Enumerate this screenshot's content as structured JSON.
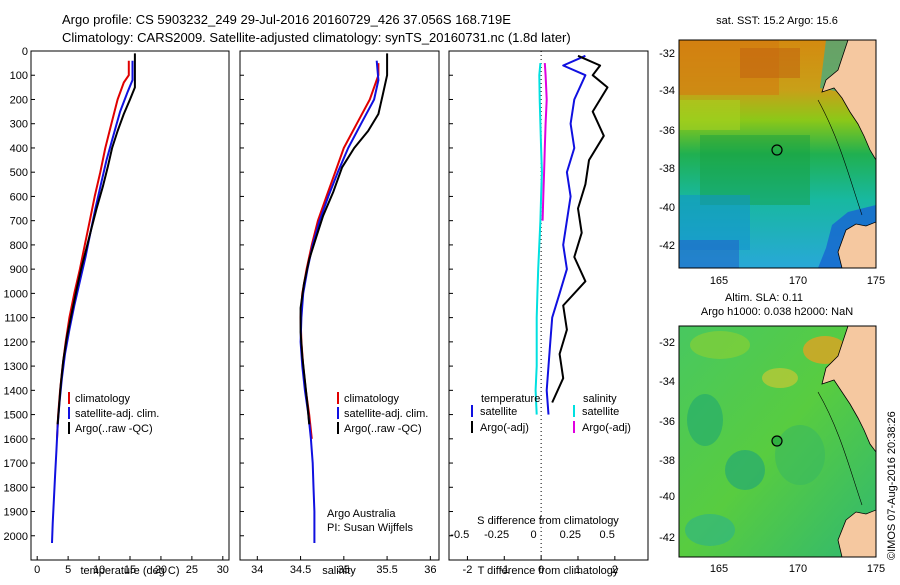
{
  "header": {
    "title_line1": "Argo profile: CS 5903232_249 29-Jul-2016 20160729_426 37.056S 168.719E",
    "title_line2": "Climatology: CARS2009. Satellite-adjusted climatology: synTS_20160731.nc (1.8d later)"
  },
  "colors": {
    "climatology": "#e00000",
    "satellite": "#1010e0",
    "argo": "#000000",
    "sal_satellite": "#00e0e0",
    "sal_argo": "#e000e0"
  },
  "chart_data": [
    {
      "type": "line",
      "name": "temperature-panel",
      "xlabel": "temperature (deg C)",
      "ylabel": "",
      "xlim": [
        -1,
        31
      ],
      "ylim": [
        2100,
        0
      ],
      "xticks": [
        0,
        5,
        10,
        15,
        20,
        25,
        30
      ],
      "yticks": [
        0,
        100,
        200,
        300,
        400,
        500,
        600,
        700,
        800,
        900,
        1000,
        1100,
        1200,
        1300,
        1400,
        1500,
        1600,
        1700,
        1800,
        1900,
        2000
      ],
      "legend": {
        "position": "bottom-center",
        "entries": [
          "climatology",
          "satellite-adj. clim.",
          "Argo(..raw -QC)"
        ]
      },
      "series": [
        {
          "name": "climatology",
          "color_key": "climatology",
          "points": [
            [
              14.8,
              40
            ],
            [
              14.8,
              100
            ],
            [
              14.0,
              130
            ],
            [
              13.0,
              200
            ],
            [
              12.0,
              300
            ],
            [
              11.0,
              400
            ],
            [
              10.2,
              500
            ],
            [
              9.3,
              600
            ],
            [
              8.5,
              700
            ],
            [
              7.7,
              800
            ],
            [
              6.9,
              900
            ],
            [
              6.0,
              1000
            ],
            [
              5.2,
              1100
            ],
            [
              4.6,
              1200
            ],
            [
              4.1,
              1300
            ],
            [
              3.7,
              1400
            ],
            [
              3.4,
              1500
            ],
            [
              3.2,
              1600
            ]
          ]
        },
        {
          "name": "satellite-adj. clim.",
          "color_key": "satellite",
          "points": [
            [
              15.4,
              40
            ],
            [
              15.4,
              120
            ],
            [
              14.6,
              170
            ],
            [
              13.4,
              250
            ],
            [
              12.3,
              350
            ],
            [
              11.2,
              450
            ],
            [
              10.3,
              550
            ],
            [
              9.4,
              650
            ],
            [
              8.6,
              750
            ],
            [
              7.8,
              850
            ],
            [
              6.9,
              950
            ],
            [
              6.0,
              1050
            ],
            [
              5.2,
              1150
            ],
            [
              4.5,
              1250
            ],
            [
              4.0,
              1350
            ],
            [
              3.6,
              1450
            ],
            [
              3.3,
              1550
            ],
            [
              3.1,
              1650
            ],
            [
              2.9,
              1750
            ],
            [
              2.7,
              1850
            ],
            [
              2.5,
              1950
            ],
            [
              2.4,
              2030
            ]
          ]
        },
        {
          "name": "Argo(..raw -QC)",
          "color_key": "argo",
          "points": [
            [
              15.8,
              10
            ],
            [
              15.8,
              150
            ],
            [
              15.0,
              200
            ],
            [
              14.0,
              260
            ],
            [
              13.0,
              330
            ],
            [
              12.1,
              400
            ],
            [
              11.4,
              480
            ],
            [
              10.6,
              560
            ],
            [
              9.6,
              650
            ],
            [
              8.8,
              730
            ],
            [
              8.0,
              810
            ],
            [
              7.2,
              890
            ],
            [
              6.4,
              980
            ],
            [
              5.6,
              1080
            ],
            [
              4.8,
              1180
            ],
            [
              4.2,
              1280
            ],
            [
              3.8,
              1380
            ],
            [
              3.5,
              1480
            ],
            [
              3.3,
              1540
            ]
          ]
        }
      ]
    },
    {
      "type": "line",
      "name": "salinity-panel",
      "xlabel": "salinity",
      "ylabel": "",
      "xlim": [
        33.8,
        36.1
      ],
      "ylim": [
        2100,
        0
      ],
      "xticks": [
        34,
        34.5,
        35,
        35.5,
        36
      ],
      "legend": {
        "position": "bottom-center",
        "entries": [
          "climatology",
          "satellite-adj. clim.",
          "Argo(..raw -QC)"
        ]
      },
      "annotations": [
        "Argo Australia",
        "PI: Susan Wijffels"
      ],
      "series": [
        {
          "name": "climatology",
          "color_key": "climatology",
          "points": [
            [
              35.4,
              50
            ],
            [
              35.4,
              100
            ],
            [
              35.3,
              200
            ],
            [
              35.15,
              300
            ],
            [
              35.0,
              400
            ],
            [
              34.9,
              500
            ],
            [
              34.8,
              600
            ],
            [
              34.7,
              700
            ],
            [
              34.63,
              800
            ],
            [
              34.57,
              900
            ],
            [
              34.52,
              1000
            ],
            [
              34.5,
              1100
            ],
            [
              34.51,
              1200
            ],
            [
              34.53,
              1300
            ],
            [
              34.56,
              1400
            ],
            [
              34.6,
              1500
            ],
            [
              34.63,
              1600
            ]
          ]
        },
        {
          "name": "satellite-adj. clim.",
          "color_key": "satellite",
          "points": [
            [
              35.38,
              40
            ],
            [
              35.4,
              120
            ],
            [
              35.35,
              200
            ],
            [
              35.2,
              300
            ],
            [
              35.05,
              400
            ],
            [
              34.93,
              500
            ],
            [
              34.82,
              600
            ],
            [
              34.72,
              700
            ],
            [
              34.64,
              800
            ],
            [
              34.58,
              900
            ],
            [
              34.53,
              1000
            ],
            [
              34.51,
              1100
            ],
            [
              34.5,
              1200
            ],
            [
              34.52,
              1300
            ],
            [
              34.55,
              1400
            ],
            [
              34.59,
              1500
            ],
            [
              34.62,
              1600
            ],
            [
              34.64,
              1700
            ],
            [
              34.65,
              1800
            ],
            [
              34.66,
              1900
            ],
            [
              34.66,
              2030
            ]
          ]
        },
        {
          "name": "Argo(..raw -QC)",
          "color_key": "argo",
          "points": [
            [
              35.5,
              10
            ],
            [
              35.5,
              100
            ],
            [
              35.45,
              180
            ],
            [
              35.4,
              260
            ],
            [
              35.28,
              330
            ],
            [
              35.12,
              400
            ],
            [
              34.98,
              480
            ],
            [
              34.88,
              580
            ],
            [
              34.76,
              680
            ],
            [
              34.68,
              770
            ],
            [
              34.6,
              860
            ],
            [
              34.54,
              960
            ],
            [
              34.5,
              1060
            ],
            [
              34.5,
              1160
            ],
            [
              34.52,
              1260
            ],
            [
              34.55,
              1360
            ],
            [
              34.58,
              1460
            ],
            [
              34.6,
              1540
            ]
          ]
        }
      ]
    },
    {
      "type": "line",
      "name": "difference-panel",
      "xlabel": "T difference from climatology",
      "top_label": "S difference from climatology",
      "xlim": [
        -2.5,
        2.9
      ],
      "ylim": [
        2100,
        0
      ],
      "xticks": [
        -2,
        -1,
        0,
        1,
        2
      ],
      "top_ticks": [
        -0.5,
        -0.25,
        0,
        0.25,
        0.5
      ],
      "legend": {
        "position": "bottom-center",
        "temperature_title": "temperature",
        "salinity_title": "salinity",
        "temperature_entries": [
          "satellite",
          "Argo(-adj)"
        ],
        "salinity_entries": [
          "satellite",
          "Argo(-adj)"
        ]
      },
      "series": [
        {
          "name": "temperature satellite",
          "color_key": "satellite",
          "points": [
            [
              1.2,
              20
            ],
            [
              0.6,
              60
            ],
            [
              1.2,
              100
            ],
            [
              0.9,
              200
            ],
            [
              0.8,
              300
            ],
            [
              0.9,
              400
            ],
            [
              0.7,
              500
            ],
            [
              0.8,
              600
            ],
            [
              0.6,
              800
            ],
            [
              0.7,
              900
            ],
            [
              0.5,
              1000
            ],
            [
              0.3,
              1100
            ],
            [
              0.25,
              1200
            ],
            [
              0.2,
              1300
            ],
            [
              0.15,
              1400
            ],
            [
              0.2,
              1500
            ]
          ]
        },
        {
          "name": "temperature Argo(-adj)",
          "color_key": "argo",
          "points": [
            [
              1.0,
              20
            ],
            [
              1.6,
              60
            ],
            [
              1.4,
              100
            ],
            [
              1.8,
              150
            ],
            [
              1.4,
              250
            ],
            [
              1.7,
              350
            ],
            [
              1.3,
              450
            ],
            [
              1.2,
              550
            ],
            [
              1.0,
              650
            ],
            [
              1.1,
              750
            ],
            [
              0.9,
              850
            ],
            [
              1.2,
              950
            ],
            [
              0.6,
              1050
            ],
            [
              0.7,
              1150
            ],
            [
              0.5,
              1250
            ],
            [
              0.6,
              1350
            ],
            [
              0.3,
              1450
            ]
          ]
        },
        {
          "name": "salinity satellite",
          "color_key": "sal_satellite",
          "points": [
            [
              -0.02,
              50
            ],
            [
              -0.05,
              100
            ],
            [
              -0.04,
              200
            ],
            [
              -0.02,
              300
            ],
            [
              0.0,
              400
            ],
            [
              0.02,
              500
            ],
            [
              0.0,
              600
            ],
            [
              -0.02,
              700
            ],
            [
              -0.05,
              800
            ],
            [
              -0.08,
              900
            ],
            [
              -0.1,
              1000
            ],
            [
              -0.12,
              1100
            ],
            [
              -0.12,
              1200
            ],
            [
              -0.12,
              1300
            ],
            [
              -0.15,
              1400
            ],
            [
              -0.12,
              1500
            ]
          ]
        },
        {
          "name": "salinity Argo(-adj)",
          "color_key": "sal_argo",
          "points": [
            [
              0.1,
              50
            ],
            [
              0.12,
              100
            ],
            [
              0.15,
              200
            ],
            [
              0.12,
              300
            ],
            [
              0.1,
              400
            ],
            [
              0.08,
              500
            ],
            [
              0.06,
              600
            ],
            [
              0.04,
              700
            ]
          ]
        }
      ]
    }
  ],
  "maps": {
    "sst": {
      "title": "sat. SST: 15.2 Argo: 15.6",
      "xticks": [
        "165",
        "170",
        "175"
      ],
      "yticks": [
        "-32",
        "-34",
        "-36",
        "-38",
        "-40",
        "-42"
      ]
    },
    "sla": {
      "title_line1": "Altim. SLA: 0.11",
      "title_line2": "Argo h1000: 0.038 h2000: NaN",
      "xticks": [
        "165",
        "170",
        "175"
      ],
      "yticks": [
        "-32",
        "-34",
        "-36",
        "-38",
        "-40",
        "-42"
      ]
    },
    "float_position": {
      "lon": 168.719,
      "lat": -37.056
    }
  },
  "footer": {
    "stamp": "©IMOS 07-Aug-2016 20:38:26"
  }
}
